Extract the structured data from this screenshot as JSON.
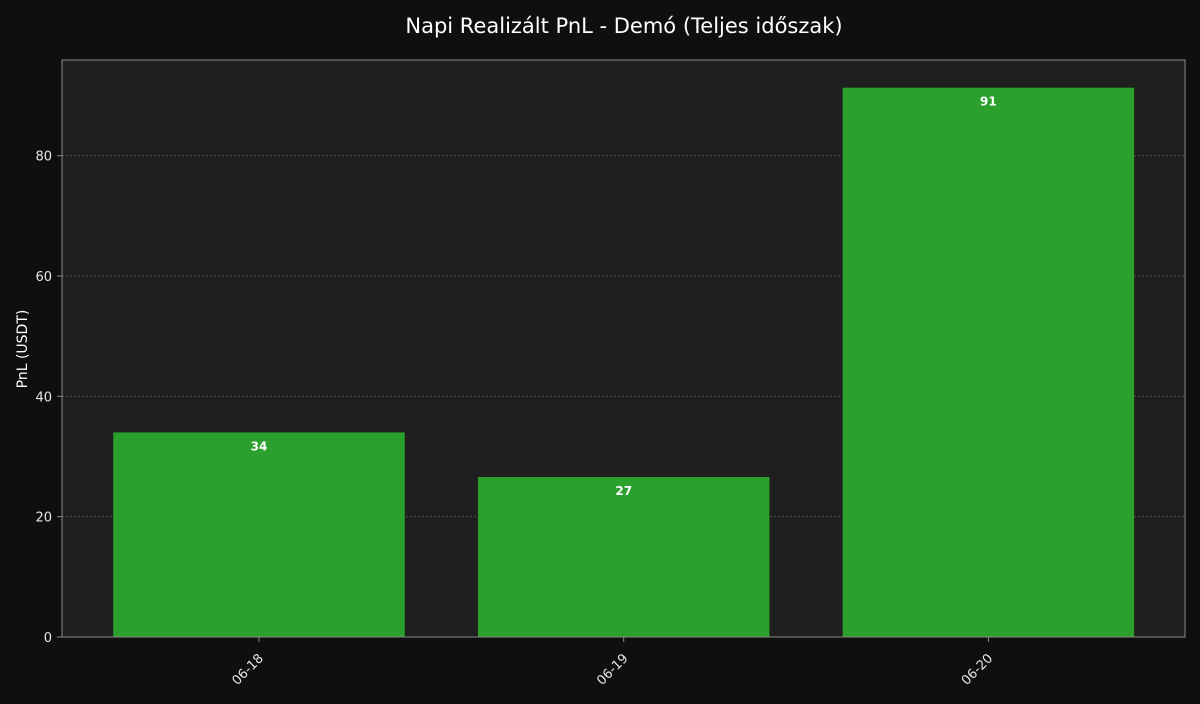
{
  "chart_data": {
    "type": "bar",
    "title": "Napi Realizált PnL - Demó (Teljes időszak)",
    "xlabel": "",
    "ylabel": "PnL (USDT)",
    "categories": [
      "06-18",
      "06-19",
      "06-20"
    ],
    "values": [
      34,
      26.6,
      91.3
    ],
    "data_labels": [
      "34",
      "27",
      "91"
    ],
    "ylim": [
      0,
      95.9
    ],
    "yticks": [
      0,
      20,
      40,
      60,
      80
    ],
    "grid": true,
    "legend": "none",
    "colors": {
      "page_background": "#0f0f0f",
      "plot_background": "#1f1f1f",
      "bar": "#2ca02c",
      "grid": "#555555",
      "axis": "#8a8a8a",
      "text": "#ffffff",
      "tick_text": "#e6e6e6"
    }
  }
}
